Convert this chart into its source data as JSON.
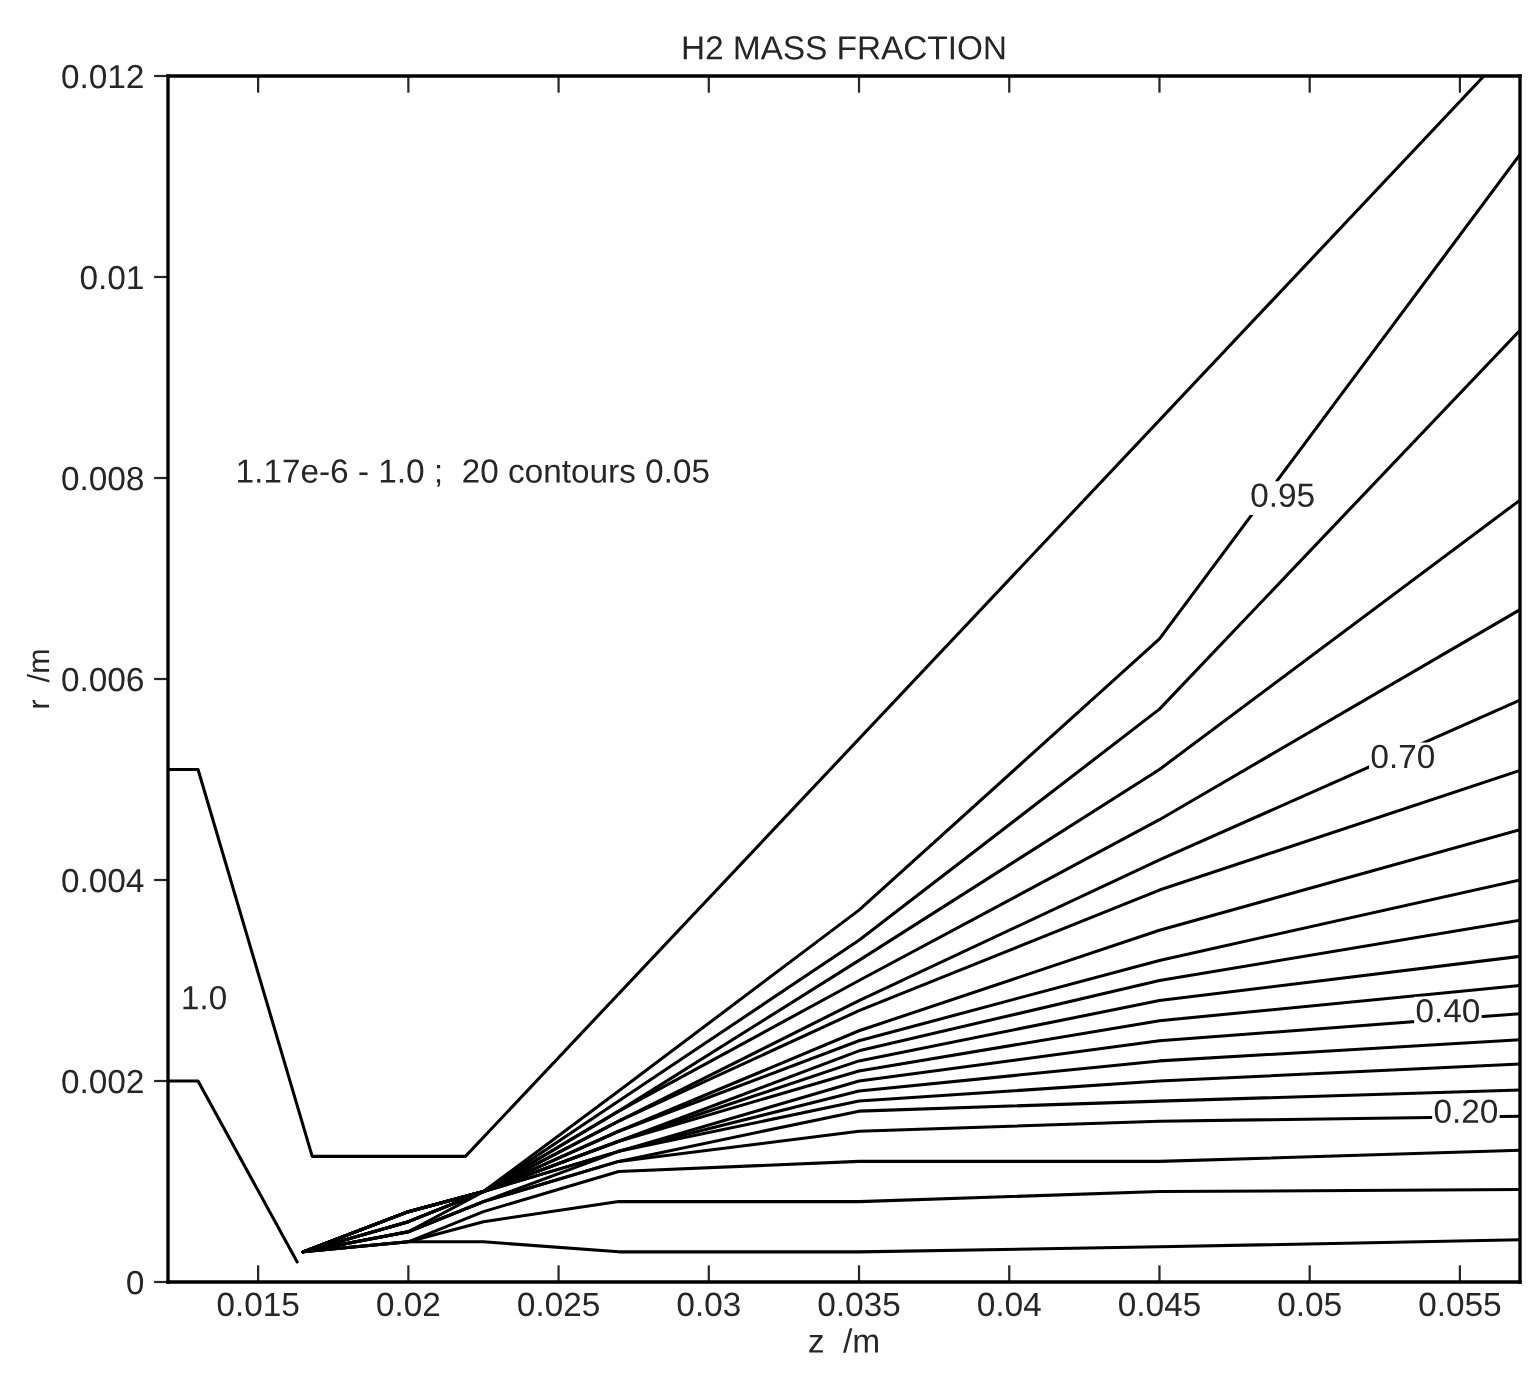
{
  "chart_data": {
    "type": "line",
    "title": "H2 MASS FRACTION",
    "xlabel": "z  /m",
    "ylabel": "r  /m",
    "xlim": [
      0.012,
      0.057
    ],
    "ylim": [
      0,
      0.012
    ],
    "xticks": [
      0.015,
      0.02,
      0.025,
      0.03,
      0.035,
      0.04,
      0.045,
      0.05,
      0.055
    ],
    "yticks": [
      0,
      0.002,
      0.004,
      0.006,
      0.008,
      0.01,
      0.012
    ],
    "grid": false,
    "legend": false,
    "line_style": "solid",
    "marker": "none",
    "x": [
      0.0165,
      0.02,
      0.0225,
      0.027,
      0.035,
      0.045,
      0.057
    ],
    "series": [
      {
        "color": "#000000",
        "x": [
          0.012,
          0.013,
          0.0168,
          0.0219,
          0.0558
        ],
        "values": [
          0.0051,
          0.0051,
          0.00125,
          0.00125,
          0.012
        ]
      },
      {
        "color": "#000000",
        "x": [
          0.012,
          0.013,
          0.0163
        ],
        "values": [
          0.002,
          0.002,
          0.0002
        ]
      },
      {
        "color": "#000000",
        "values": [
          0.0003,
          0.0007,
          0.0009,
          0.0019,
          0.0037,
          0.0064,
          0.01122
        ]
      },
      {
        "color": "#000000",
        "values": [
          0.0003,
          0.0007,
          0.0009,
          0.0018,
          0.0034,
          0.0057,
          0.00947
        ]
      },
      {
        "color": "#000000",
        "values": [
          0.0003,
          0.0007,
          0.0009,
          0.0017,
          0.0032,
          0.0051,
          0.00778
        ]
      },
      {
        "color": "#000000",
        "values": [
          0.0003,
          0.0007,
          0.0009,
          0.0017,
          0.003,
          0.0046,
          0.00669
        ]
      },
      {
        "color": "#000000",
        "values": [
          0.0003,
          0.0007,
          0.0009,
          0.0016,
          0.0028,
          0.0042,
          0.00579
        ]
      },
      {
        "color": "#000000",
        "values": [
          0.0003,
          0.0007,
          0.0009,
          0.0016,
          0.0027,
          0.0039,
          0.00509
        ]
      },
      {
        "color": "#000000",
        "values": [
          0.0003,
          0.0007,
          0.0009,
          0.0015,
          0.0025,
          0.0035,
          0.0045
        ]
      },
      {
        "color": "#000000",
        "values": [
          0.0003,
          0.0007,
          0.0009,
          0.0015,
          0.0024,
          0.0032,
          0.004
        ]
      },
      {
        "color": "#000000",
        "values": [
          0.0003,
          0.0006,
          0.0009,
          0.0014,
          0.0023,
          0.003,
          0.0036
        ]
      },
      {
        "color": "#000000",
        "values": [
          0.0003,
          0.0006,
          0.0009,
          0.0014,
          0.0022,
          0.0028,
          0.00324
        ]
      },
      {
        "color": "#000000",
        "values": [
          0.0003,
          0.0006,
          0.0009,
          0.0014,
          0.0021,
          0.0026,
          0.00295
        ]
      },
      {
        "color": "#000000",
        "values": [
          0.0003,
          0.0006,
          0.0009,
          0.0013,
          0.002,
          0.0024,
          0.00267
        ]
      },
      {
        "color": "#000000",
        "values": [
          0.0003,
          0.0005,
          0.0009,
          0.0013,
          0.0019,
          0.0022,
          0.00241
        ]
      },
      {
        "color": "#000000",
        "values": [
          0.0003,
          0.0005,
          0.0008,
          0.0013,
          0.0018,
          0.002,
          0.00217
        ]
      },
      {
        "color": "#000000",
        "values": [
          0.0003,
          0.0005,
          0.0008,
          0.0012,
          0.0017,
          0.0018,
          0.00191
        ]
      },
      {
        "color": "#000000",
        "values": [
          0.0003,
          0.0005,
          0.0008,
          0.0012,
          0.0015,
          0.0016,
          0.00165
        ]
      },
      {
        "color": "#000000",
        "values": [
          0.0003,
          0.0004,
          0.0007,
          0.0011,
          0.0012,
          0.0012,
          0.00131
        ]
      },
      {
        "color": "#000000",
        "values": [
          0.0003,
          0.0004,
          0.0006,
          0.0008,
          0.0008,
          0.0009,
          0.00092
        ]
      },
      {
        "color": "#000000",
        "values": [
          0.0003,
          0.0004,
          0.0004,
          0.0003,
          0.0003,
          0.00035,
          0.00042
        ]
      }
    ],
    "annotations": [
      "1.17e-6 - 1.0 ;  20 contours 0.05",
      {
        "text": "1.0",
        "x": 0.0132,
        "y": 0.0028
      },
      {
        "text": "0.95",
        "x": 0.0491,
        "y": 0.0078
      },
      {
        "text": "0.70",
        "x": 0.0531,
        "y": 0.0052
      },
      {
        "text": "0.40",
        "x": 0.0546,
        "y": 0.00267
      },
      {
        "text": "0.20",
        "x": 0.0552,
        "y": 0.00167
      }
    ]
  }
}
